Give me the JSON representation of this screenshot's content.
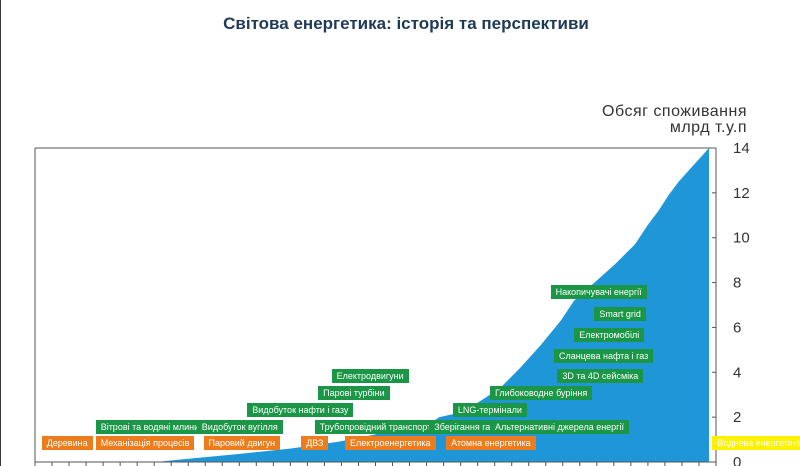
{
  "page": {
    "title": "Світова енергетика: історія та перспективи",
    "colors": {
      "area": "#1e96d8",
      "green_label": "#1a9646",
      "orange_label": "#ed7d1c",
      "yellow_label": "#fff200",
      "axis": "#555555"
    }
  },
  "chart_data": {
    "type": "area",
    "ylabel_line1": "Обсяг споживання",
    "ylabel_line2": "млрд т.у.п",
    "ylim": [
      0,
      14
    ],
    "yticks": [
      0,
      2,
      4,
      6,
      8,
      10,
      12,
      14
    ],
    "y_axis_position": "right",
    "grid": false,
    "x_index_range": [
      0,
      100
    ],
    "series": [
      {
        "x": [
          0,
          18,
          22,
          30,
          38,
          45,
          50,
          54,
          58,
          60,
          63,
          66,
          69,
          72,
          75,
          78,
          80,
          83,
          86,
          89,
          91,
          92.5,
          94,
          95.5,
          97,
          98.5,
          100
        ],
        "values": [
          0,
          0,
          0.12,
          0.35,
          0.6,
          0.9,
          1.2,
          1.5,
          1.6,
          2.0,
          2.2,
          2.7,
          3.3,
          4.2,
          5.2,
          6.3,
          7.2,
          8.0,
          8.8,
          9.7,
          10.6,
          11.2,
          11.9,
          12.5,
          13.0,
          13.5,
          14.0
        ]
      }
    ],
    "labels": [
      {
        "text": "Деревина",
        "color": "orange",
        "x": 1,
        "y": 0.85
      },
      {
        "text": "Механізація процесів",
        "color": "orange",
        "x": 9,
        "y": 0.85
      },
      {
        "text": "Паровий двигун",
        "color": "orange",
        "x": 25,
        "y": 0.85
      },
      {
        "text": "ДВЗ",
        "color": "orange",
        "x": 39.5,
        "y": 0.85
      },
      {
        "text": "Електроенергетика",
        "color": "orange",
        "x": 46,
        "y": 0.85
      },
      {
        "text": "Атомна енергетика",
        "color": "orange",
        "x": 61,
        "y": 0.85
      },
      {
        "text": "Воднева енергетика",
        "color": "yellow",
        "x": 100.5,
        "y": 0.85
      },
      {
        "text": "Вітрові та водяні млини",
        "color": "green",
        "x": 9,
        "y": 1.55
      },
      {
        "text": "Видобуток вугілля",
        "color": "green",
        "x": 24,
        "y": 1.55
      },
      {
        "text": "Трубопровідний транспорт",
        "color": "green",
        "x": 41.5,
        "y": 1.55
      },
      {
        "text": "Зберігання газу",
        "color": "green",
        "x": 58.5,
        "y": 1.55
      },
      {
        "text": "Альтернативні джерела енергії",
        "color": "green",
        "x": 67.5,
        "y": 1.55
      },
      {
        "text": "Видобуток нафти і газу",
        "color": "green",
        "x": 31.5,
        "y": 2.3
      },
      {
        "text": "LNG-термінали",
        "color": "green",
        "x": 62,
        "y": 2.3
      },
      {
        "text": "Парові турбіни",
        "color": "green",
        "x": 42,
        "y": 3.1
      },
      {
        "text": "Глибоководне буріння",
        "color": "green",
        "x": 67.5,
        "y": 3.1
      },
      {
        "text": "Електродвигуни",
        "color": "green",
        "x": 44,
        "y": 3.85
      },
      {
        "text": "3D та 4D сейсміка",
        "color": "green",
        "x": 77.5,
        "y": 3.85
      },
      {
        "text": "Сланцева нафта і газ",
        "color": "green",
        "x": 77,
        "y": 4.75
      },
      {
        "text": "Електромобілі",
        "color": "green",
        "x": 80,
        "y": 5.65
      },
      {
        "text": "Smart grid",
        "color": "green",
        "x": 83,
        "y": 6.6
      },
      {
        "text": "Накопичувачі енергії",
        "color": "green",
        "x": 76.5,
        "y": 7.6
      }
    ]
  }
}
